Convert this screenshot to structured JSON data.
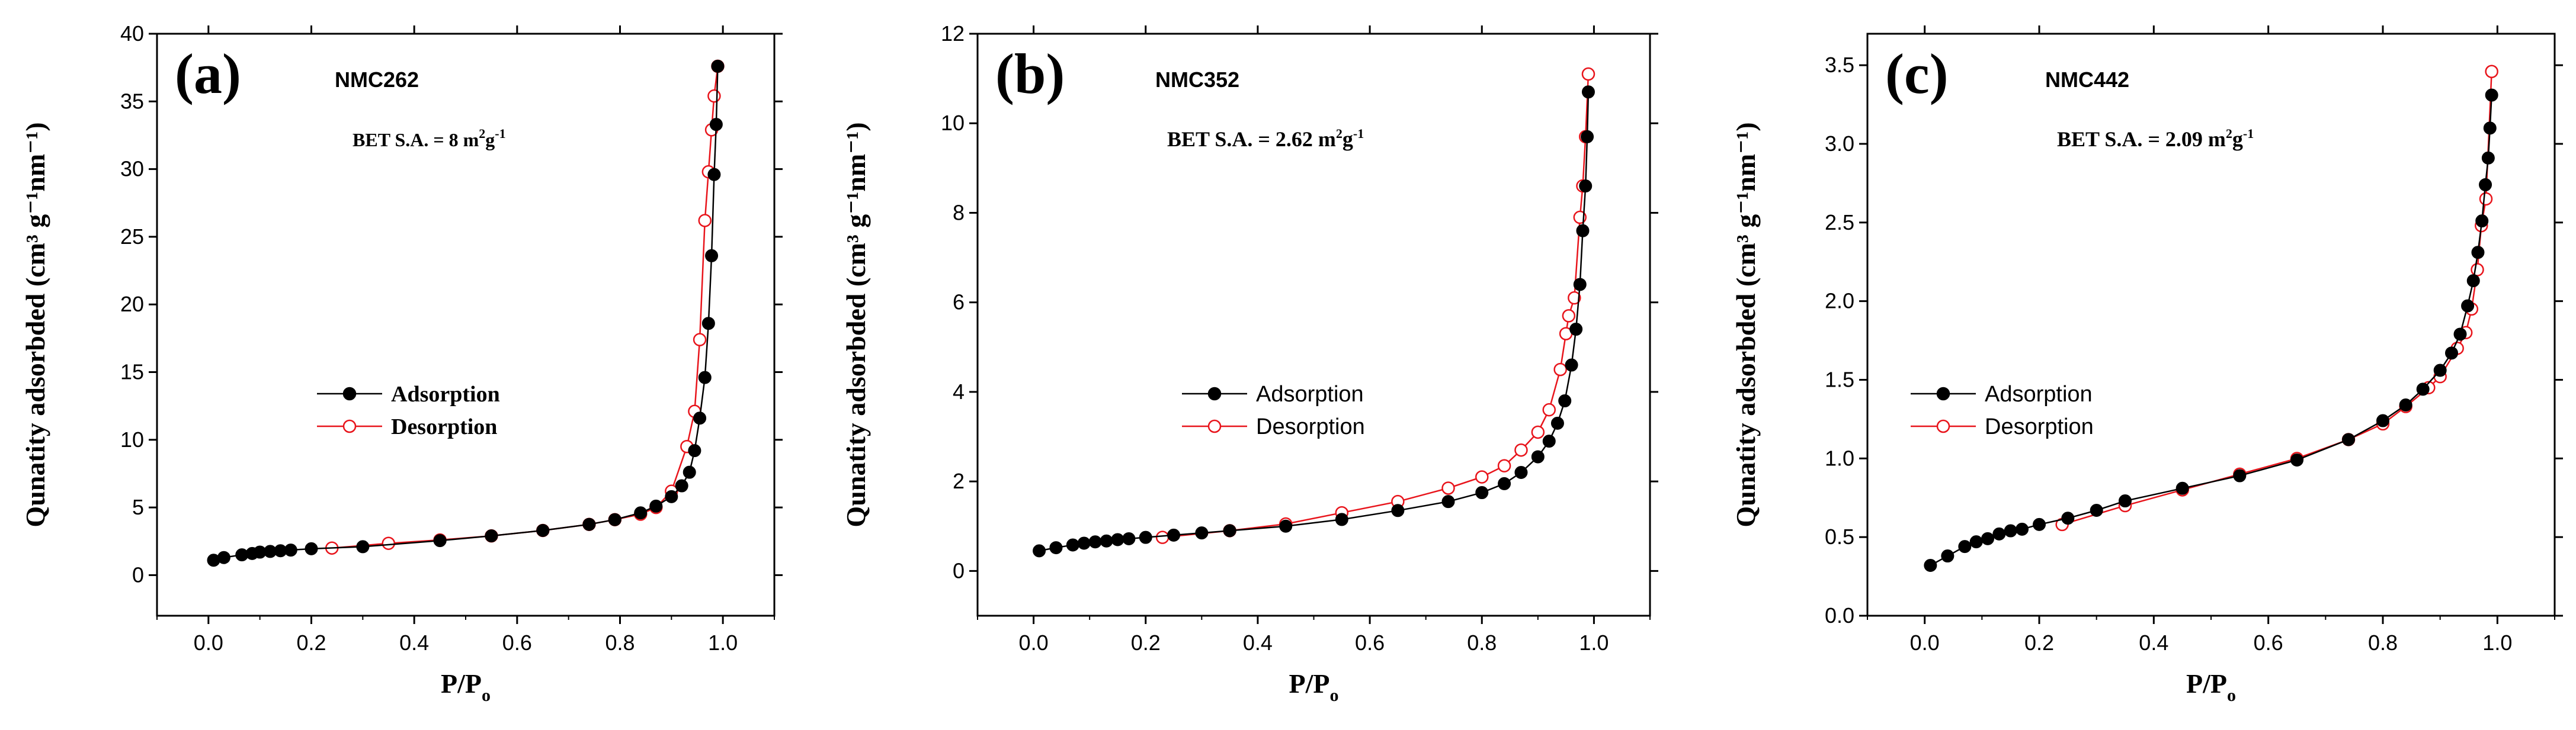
{
  "colors": {
    "adsorption": "#000000",
    "desorption": "#e8141b",
    "axis": "#000000"
  },
  "chart_data": [
    {
      "type": "line",
      "panel_label": "(a)",
      "sample": "NMC262",
      "bet": {
        "prefix": "BET S.A. = 8 m",
        "sup1": "2",
        "mid": "g",
        "sup2": "-1"
      },
      "xlabel": {
        "main": "P/P",
        "sub": "o"
      },
      "ylabel": "Qunatity adsorbded (cm³ g⁻¹nm⁻¹)",
      "xlim": [
        -0.1,
        1.1
      ],
      "ylim": [
        -3,
        40
      ],
      "xticks": [
        0.0,
        0.2,
        0.4,
        0.6,
        0.8,
        1.0
      ],
      "xtick_labels": [
        "0.0",
        "0.2",
        "0.4",
        "0.6",
        "0.8",
        "1.0"
      ],
      "yticks": [
        0,
        5,
        10,
        15,
        20,
        25,
        30,
        35,
        40
      ],
      "ytick_labels": [
        "0",
        "5",
        "10",
        "15",
        "20",
        "25",
        "30",
        "35",
        "40"
      ],
      "legend_position": "center",
      "legend_font": "serif",
      "series": [
        {
          "name": "Adsorption",
          "style": "filled",
          "x": [
            0.01,
            0.03,
            0.065,
            0.085,
            0.1,
            0.12,
            0.14,
            0.16,
            0.2,
            0.3,
            0.45,
            0.55,
            0.65,
            0.74,
            0.79,
            0.84,
            0.87,
            0.9,
            0.92,
            0.935,
            0.945,
            0.955,
            0.965,
            0.972,
            0.978,
            0.983,
            0.987,
            0.99
          ],
          "y": [
            1.1,
            1.3,
            1.5,
            1.6,
            1.7,
            1.75,
            1.8,
            1.85,
            1.95,
            2.1,
            2.55,
            2.9,
            3.3,
            3.75,
            4.1,
            4.6,
            5.1,
            5.8,
            6.6,
            7.6,
            9.2,
            11.6,
            14.6,
            18.6,
            23.6,
            29.6,
            33.3,
            37.6
          ]
        },
        {
          "name": "Desorption",
          "style": "open",
          "x": [
            0.24,
            0.35,
            0.45,
            0.55,
            0.65,
            0.74,
            0.79,
            0.84,
            0.87,
            0.9,
            0.93,
            0.945,
            0.955,
            0.965,
            0.972,
            0.978,
            0.983,
            0.99
          ],
          "y": [
            2.0,
            2.35,
            2.6,
            2.9,
            3.3,
            3.75,
            4.1,
            4.5,
            5.0,
            6.2,
            9.5,
            12.1,
            17.4,
            26.2,
            29.8,
            32.9,
            35.4,
            37.6
          ]
        }
      ]
    },
    {
      "type": "line",
      "panel_label": "(b)",
      "sample": "NMC352",
      "bet": {
        "prefix": "BET S.A. = 2.62 m",
        "sup1": "2",
        "mid": "g",
        "sup2": "-1"
      },
      "xlabel": {
        "main": "P/P",
        "sub": "o"
      },
      "ylabel": "Qunatity adsorbded (cm³ g⁻¹nm⁻¹)",
      "xlim": [
        -0.1,
        1.1
      ],
      "ylim": [
        -1,
        12
      ],
      "xticks": [
        0.0,
        0.2,
        0.4,
        0.6,
        0.8,
        1.0
      ],
      "xtick_labels": [
        "0.0",
        "0.2",
        "0.4",
        "0.6",
        "0.8",
        "1.0"
      ],
      "yticks": [
        0,
        2,
        4,
        6,
        8,
        10,
        12
      ],
      "ytick_labels": [
        "0",
        "2",
        "4",
        "6",
        "8",
        "10",
        "12"
      ],
      "legend_position": "center",
      "legend_font": "sans",
      "series": [
        {
          "name": "Adsorption",
          "style": "filled",
          "x": [
            0.01,
            0.04,
            0.07,
            0.09,
            0.11,
            0.13,
            0.15,
            0.17,
            0.2,
            0.25,
            0.3,
            0.35,
            0.45,
            0.55,
            0.65,
            0.74,
            0.8,
            0.84,
            0.87,
            0.9,
            0.92,
            0.935,
            0.948,
            0.96,
            0.968,
            0.975,
            0.98,
            0.985,
            0.988,
            0.99
          ],
          "y": [
            0.45,
            0.52,
            0.58,
            0.62,
            0.65,
            0.67,
            0.7,
            0.72,
            0.75,
            0.8,
            0.85,
            0.9,
            1.0,
            1.15,
            1.35,
            1.55,
            1.75,
            1.95,
            2.2,
            2.55,
            2.9,
            3.3,
            3.8,
            4.6,
            5.4,
            6.4,
            7.6,
            8.6,
            9.7,
            10.7
          ]
        },
        {
          "name": "Desorption",
          "style": "open",
          "x": [
            0.23,
            0.35,
            0.45,
            0.55,
            0.65,
            0.74,
            0.8,
            0.84,
            0.87,
            0.9,
            0.92,
            0.94,
            0.95,
            0.955,
            0.965,
            0.975,
            0.98,
            0.985,
            0.99
          ],
          "y": [
            0.75,
            0.9,
            1.05,
            1.3,
            1.55,
            1.85,
            2.1,
            2.35,
            2.7,
            3.1,
            3.6,
            4.5,
            5.3,
            5.7,
            6.1,
            7.9,
            8.6,
            9.7,
            11.1
          ]
        }
      ]
    },
    {
      "type": "line",
      "panel_label": "(c)",
      "sample": "NMC442",
      "bet": {
        "prefix": "BET S.A. = 2.09 m",
        "sup1": "2",
        "mid": "g",
        "sup2": "-1"
      },
      "xlabel": {
        "main": "P/P",
        "sub": "o"
      },
      "ylabel": "Qunatity adsorbded (cm³ g⁻¹nm⁻¹)",
      "xlim": [
        -0.1,
        1.1
      ],
      "ylim": [
        0,
        3.7
      ],
      "xticks": [
        0.0,
        0.2,
        0.4,
        0.6,
        0.8,
        1.0
      ],
      "xtick_labels": [
        "0.0",
        "0.2",
        "0.4",
        "0.6",
        "0.8",
        "1.0"
      ],
      "yticks": [
        0.0,
        0.5,
        1.0,
        1.5,
        2.0,
        2.5,
        3.0,
        3.5
      ],
      "ytick_labels": [
        "0.0",
        "0.5",
        "1.0",
        "1.5",
        "2.0",
        "2.5",
        "3.0",
        "3.5"
      ],
      "legend_position": "center-left",
      "legend_font": "sans",
      "series": [
        {
          "name": "Adsorption",
          "style": "filled",
          "x": [
            0.01,
            0.04,
            0.07,
            0.09,
            0.11,
            0.13,
            0.15,
            0.17,
            0.2,
            0.25,
            0.3,
            0.35,
            0.45,
            0.55,
            0.65,
            0.74,
            0.8,
            0.84,
            0.87,
            0.9,
            0.92,
            0.935,
            0.948,
            0.958,
            0.966,
            0.973,
            0.979,
            0.984,
            0.987,
            0.99
          ],
          "y": [
            0.32,
            0.38,
            0.44,
            0.47,
            0.49,
            0.52,
            0.54,
            0.55,
            0.58,
            0.62,
            0.67,
            0.73,
            0.81,
            0.89,
            0.99,
            1.12,
            1.24,
            1.34,
            1.44,
            1.56,
            1.67,
            1.79,
            1.97,
            2.13,
            2.31,
            2.51,
            2.74,
            2.91,
            3.1,
            3.31
          ]
        },
        {
          "name": "Desorption",
          "style": "open",
          "x": [
            0.24,
            0.35,
            0.45,
            0.55,
            0.65,
            0.74,
            0.8,
            0.84,
            0.88,
            0.9,
            0.93,
            0.945,
            0.955,
            0.965,
            0.972,
            0.98,
            0.99
          ],
          "y": [
            0.58,
            0.7,
            0.8,
            0.9,
            1.0,
            1.12,
            1.22,
            1.33,
            1.45,
            1.52,
            1.7,
            1.8,
            1.95,
            2.2,
            2.48,
            2.65,
            3.46
          ]
        }
      ]
    }
  ]
}
